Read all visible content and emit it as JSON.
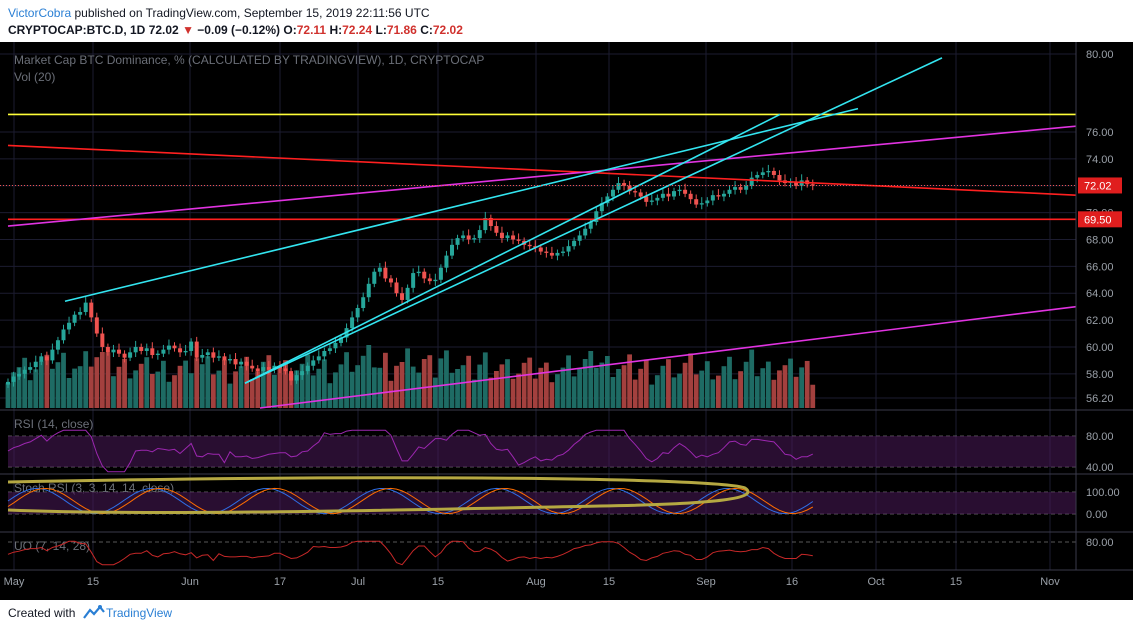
{
  "header": {
    "author": "VictorCobra",
    "published": " published on TradingView.com, September 15, 2019 22:11:56 UTC",
    "symbol": "CRYPTOCAP:BTC.D, 1D",
    "last": "72.02",
    "change_arrow": "▼",
    "change": "−0.09 (−0.12%)",
    "o_label": "O:",
    "o_value": "72.11",
    "h_label": "H:",
    "h_value": "72.24",
    "l_label": "L:",
    "l_value": "71.86",
    "c_label": "C:",
    "c_value": "72.02"
  },
  "footer": {
    "created_with": "Created with",
    "brand": "TradingView"
  },
  "colors": {
    "background": "#000000",
    "up": "#26a69a",
    "down": "#ef5350",
    "vol_up": "#1e6b64",
    "vol_down": "#a3403e",
    "yellow_line": "#ffff38",
    "red_line": "#ff2020",
    "magenta_line": "#e133e1",
    "cyan_line": "#33e5f0",
    "rsi_line": "#9c27b0",
    "stoch_k": "#2f6ee6",
    "stoch_d": "#ff6d00",
    "uo_line": "#c62828",
    "ellipse": "#b5a842"
  },
  "chart_data": {
    "type": "candlestick",
    "title": "Market Cap BTC Dominance, % (CALCULATED BY TRADINGVIEW), 1D, CRYPTOCAP",
    "volume_label": "Vol (20)",
    "x_ticks": [
      "May",
      "15",
      "Jun",
      "17",
      "Jul",
      "15",
      "Aug",
      "15",
      "Sep",
      "16",
      "Oct",
      "15",
      "Nov"
    ],
    "y_ticks": [
      "80.00",
      "76.00",
      "74.00",
      "72.00",
      "70.00",
      "68.00",
      "66.00",
      "64.00",
      "62.00",
      "60.00",
      "58.00",
      "56.20"
    ],
    "ylim": [
      56.2,
      80.0
    ],
    "price_labels": [
      {
        "text": "72.02",
        "value": 72.02
      },
      {
        "text": "69.50",
        "value": 69.5
      }
    ],
    "horizontal_lines": [
      {
        "color": "yellow",
        "value": 76.9
      },
      {
        "color": "red",
        "value": 69.5
      }
    ],
    "candles_note": "Daily closes, May 1 – Sep 15 2019 (approximate, read from chart)",
    "closes": [
      57.4,
      57.8,
      58.0,
      58.3,
      58.5,
      58.9,
      59.3,
      59.0,
      59.8,
      60.5,
      61.3,
      61.8,
      62.4,
      62.6,
      63.3,
      62.2,
      61.0,
      60.0,
      59.6,
      59.8,
      59.5,
      59.2,
      59.6,
      60.0,
      59.7,
      59.9,
      59.4,
      59.5,
      59.8,
      60.1,
      59.9,
      59.6,
      59.7,
      60.4,
      59.2,
      59.4,
      59.6,
      59.2,
      59.3,
      59.0,
      59.1,
      58.7,
      58.9,
      58.6,
      58.4,
      58.2,
      58.5,
      58.3,
      58.6,
      58.4,
      58.2,
      57.5,
      57.9,
      58.2,
      58.6,
      59.0,
      59.3,
      59.7,
      59.9,
      60.3,
      60.7,
      61.4,
      62.2,
      62.9,
      63.7,
      64.7,
      65.6,
      65.9,
      65.1,
      64.8,
      64.0,
      63.5,
      64.4,
      65.5,
      65.6,
      65.1,
      64.9,
      65.0,
      65.9,
      66.8,
      67.6,
      68.1,
      68.3,
      68.0,
      68.1,
      68.7,
      69.6,
      69.0,
      68.5,
      68.1,
      68.3,
      68.0,
      67.9,
      67.6,
      67.5,
      67.4,
      67.1,
      67.0,
      66.8,
      67.0,
      67.1,
      67.5,
      67.9,
      68.3,
      68.8,
      69.3,
      70.1,
      70.7,
      71.2,
      71.7,
      72.2,
      72.0,
      71.6,
      71.5,
      71.2,
      70.8,
      70.9,
      71.1,
      71.4,
      71.2,
      71.6,
      71.7,
      71.4,
      71.0,
      70.6,
      70.7,
      70.9,
      71.3,
      71.2,
      71.4,
      71.7,
      71.9,
      71.7,
      72.0,
      72.6,
      72.8,
      73.0,
      73.1,
      72.8,
      72.4,
      72.2,
      72.3,
      72.0,
      72.4,
      72.11,
      72.02
    ],
    "indicators": [
      {
        "name": "RSI",
        "label": "RSI (14, close)",
        "levels": [
          "80.00",
          "40.00"
        ]
      },
      {
        "name": "Stoch RSI",
        "label": "Stoch RSI (3, 3, 14, 14, close)",
        "levels": [
          "100.00",
          "0.00"
        ]
      },
      {
        "name": "UO",
        "label": "UO (7, 14, 28)",
        "levels": [
          "80.00"
        ]
      }
    ]
  }
}
